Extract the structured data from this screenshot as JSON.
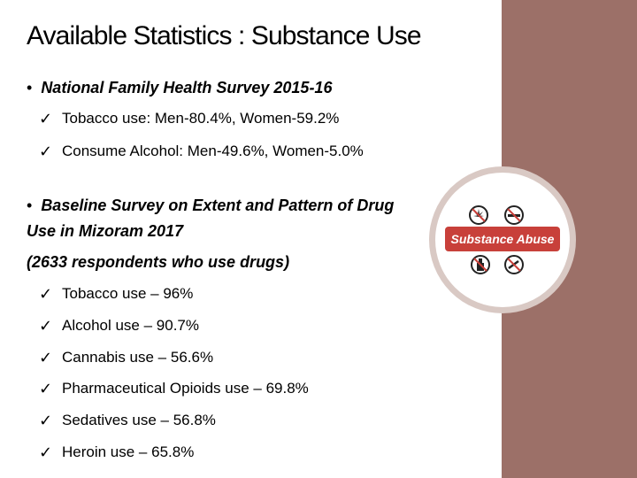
{
  "title": "Available Statistics : Substance Use",
  "section1": {
    "bullet": "•",
    "heading": "National Family Health Survey 2015-16",
    "items": [
      "Tobacco use: Men-80.4%, Women-59.2%",
      "Consume Alcohol: Men-49.6%, Women-5.0%"
    ]
  },
  "section2": {
    "bullet": "•",
    "heading": "Baseline Survey on Extent and Pattern of Drug Use in Mizoram 2017",
    "subheading": "(2633 respondents who use drugs)",
    "items": [
      "Tobacco use – 96%",
      "Alcohol use – 90.7%",
      "Cannabis use – 56.6%",
      "Pharmaceutical Opioids use – 69.8%",
      "Sedatives use – 56.8%",
      "Heroin use – 65.8%"
    ]
  },
  "check_glyph": "✓",
  "logo": {
    "text": "Substance Abuse"
  },
  "colors": {
    "side_panel": "#9c7068",
    "logo_red": "#c8403a",
    "logo_ring": "#d9c9c4"
  }
}
